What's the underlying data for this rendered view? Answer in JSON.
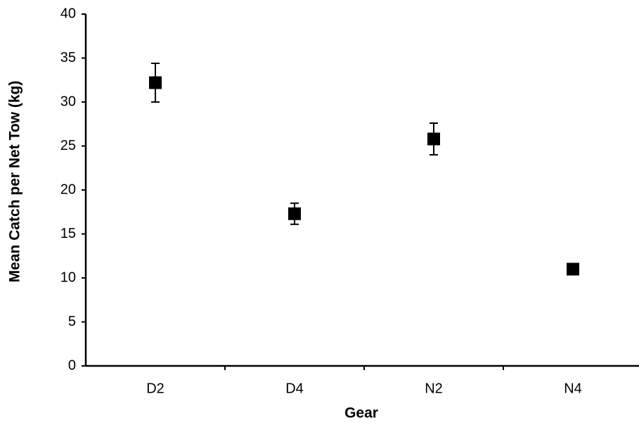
{
  "chart_data": {
    "type": "errorbar",
    "x_label": "Gear",
    "y_label": "Mean Catch per Net Tow (kg)",
    "categories": [
      "D2",
      "D4",
      "N2",
      "N4"
    ],
    "values": [
      32.2,
      17.3,
      25.8,
      11.0
    ],
    "errors": [
      2.2,
      1.2,
      1.8,
      0.5
    ],
    "color": "#000000",
    "ylim": [
      0,
      40
    ],
    "yticks": [
      0,
      5,
      10,
      15,
      20,
      25,
      30,
      35,
      40
    ],
    "grid": false
  }
}
